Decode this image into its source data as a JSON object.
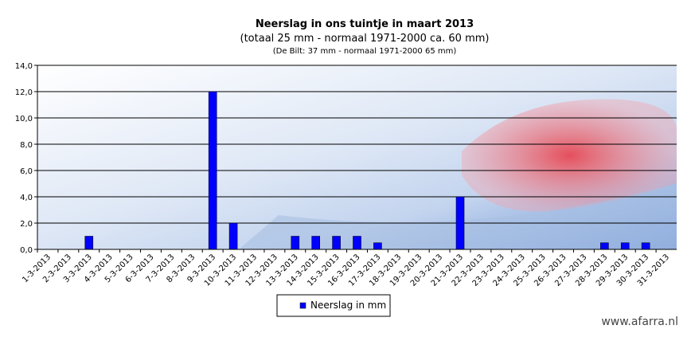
{
  "chart_data": {
    "type": "bar",
    "title": "Neerslag  in  ons  tuintje  in  maart  2013",
    "subtitle": "(totaal 25 mm  -  normaal 1971-2000  ca. 60 mm)",
    "note": "(De Bilt: 37 mm - normaal 1971-2000  65 mm)",
    "watermark": "www.afarra.nl",
    "categories": [
      "1-3-2013",
      "2-3-2013",
      "3-3-2013",
      "4-3-2013",
      "5-3-2013",
      "6-3-2013",
      "7-3-2013",
      "8-3-2013",
      "9-3-2013",
      "10-3-2013",
      "11-3-2013",
      "12-3-2013",
      "13-3-2013",
      "14-3-2013",
      "15-3-2013",
      "16-3-2013",
      "17-3-2013",
      "18-3-2013",
      "19-3-2013",
      "20-3-2013",
      "21-3-2013",
      "22-3-2013",
      "23-3-2013",
      "24-3-2013",
      "25-3-2013",
      "26-3-2013",
      "27-3-2013",
      "28-3-2013",
      "29-3-2013",
      "30-3-2013",
      "31-3-2013"
    ],
    "series": [
      {
        "name": "Neerslag in mm",
        "color": "#0000ff",
        "values": [
          0,
          0,
          1,
          0,
          0,
          0,
          0,
          0,
          12,
          2,
          0,
          0,
          1,
          1,
          1,
          1,
          0.5,
          0,
          0,
          0,
          4,
          0,
          0,
          0,
          0,
          0,
          0,
          0.5,
          0.5,
          0.5,
          0
        ]
      }
    ],
    "ylim": [
      0,
      14
    ],
    "yticks": [
      {
        "value": 0,
        "label": "0,0"
      },
      {
        "value": 2,
        "label": "2,0"
      },
      {
        "value": 4,
        "label": "4,0"
      },
      {
        "value": 6,
        "label": "6,0"
      },
      {
        "value": 8,
        "label": "8,0"
      },
      {
        "value": 10,
        "label": "10,0"
      },
      {
        "value": 12,
        "label": "12,0"
      },
      {
        "value": 14,
        "label": "14,0"
      }
    ],
    "grid": true
  }
}
